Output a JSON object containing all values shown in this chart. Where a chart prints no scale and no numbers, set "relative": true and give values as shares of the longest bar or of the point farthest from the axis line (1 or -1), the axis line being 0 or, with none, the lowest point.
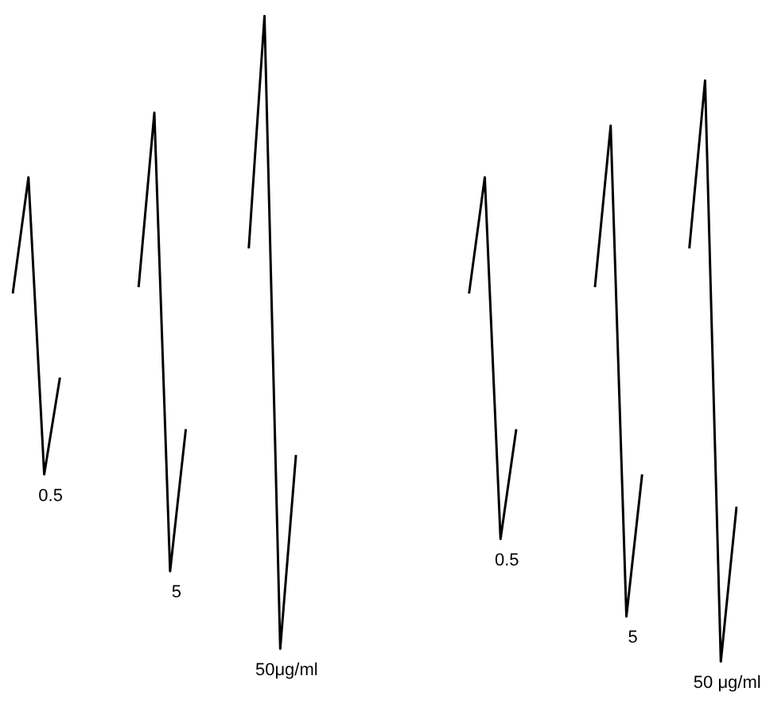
{
  "chart_data": {
    "type": "line",
    "relative": true,
    "categories": [
      null,
      null,
      null,
      null,
      null,
      null,
      null,
      null,
      null,
      null,
      null,
      null,
      null,
      null,
      null,
      null,
      null,
      null,
      null,
      null,
      null,
      null,
      null,
      null,
      null,
      null,
      null,
      null,
      null,
      null,
      null,
      null,
      null,
      null,
      null,
      null,
      null,
      null,
      null,
      null,
      null,
      null,
      null,
      null,
      null,
      null,
      null
    ],
    "series": [
      {
        "name": "0.5",
        "color": "#000000",
        "values": [
          0.57,
          0.75,
          0.29,
          0.44,
          null,
          null,
          null,
          null,
          null,
          null,
          null,
          null,
          null,
          null,
          null,
          null,
          null,
          null,
          null,
          null,
          null,
          null,
          null,
          null,
          null,
          null,
          null,
          null,
          null,
          null,
          null,
          null,
          null,
          null,
          null,
          null,
          null,
          null,
          null,
          null,
          null,
          null,
          null,
          null,
          null,
          null,
          null
        ]
      },
      {
        "name": "5",
        "color": "#000000",
        "values": [
          null,
          null,
          null,
          null,
          null,
          null,
          null,
          null,
          0.58,
          0.85,
          0.14,
          0.36,
          null,
          null,
          null,
          null,
          null,
          null,
          null,
          null,
          null,
          null,
          null,
          null,
          null,
          null,
          null,
          null,
          null,
          null,
          null,
          null,
          null,
          null,
          null,
          null,
          null,
          null,
          null,
          null,
          null,
          null,
          null,
          null,
          null,
          null,
          null
        ]
      },
      {
        "name": "50μg/ml",
        "color": "#000000",
        "values": [
          null,
          null,
          null,
          null,
          null,
          null,
          null,
          null,
          null,
          null,
          null,
          null,
          null,
          null,
          null,
          0.64,
          1,
          0.02,
          0.32,
          null,
          null,
          null,
          null,
          null,
          null,
          null,
          null,
          null,
          null,
          null,
          null,
          null,
          null,
          null,
          null,
          null,
          null,
          null,
          null,
          null,
          null,
          null,
          null,
          null,
          null,
          null,
          null
        ]
      },
      {
        "name": "0.5",
        "color": "#000000",
        "values": [
          null,
          null,
          null,
          null,
          null,
          null,
          null,
          null,
          null,
          null,
          null,
          null,
          null,
          null,
          null,
          null,
          null,
          null,
          null,
          null,
          null,
          null,
          null,
          null,
          null,
          null,
          null,
          null,
          null,
          0.57,
          0.75,
          0.19,
          0.36,
          null,
          null,
          null,
          null,
          null,
          null,
          null,
          null,
          null,
          null,
          null,
          null,
          null,
          null
        ]
      },
      {
        "name": "5",
        "color": "#000000",
        "values": [
          null,
          null,
          null,
          null,
          null,
          null,
          null,
          null,
          null,
          null,
          null,
          null,
          null,
          null,
          null,
          null,
          null,
          null,
          null,
          null,
          null,
          null,
          null,
          null,
          null,
          null,
          null,
          null,
          null,
          null,
          null,
          null,
          null,
          null,
          null,
          null,
          null,
          0.58,
          0.83,
          0.07,
          0.29,
          null,
          null,
          null,
          null,
          null,
          null
        ]
      },
      {
        "name": "50 μg/ml",
        "color": "#000000",
        "values": [
          null,
          null,
          null,
          null,
          null,
          null,
          null,
          null,
          null,
          null,
          null,
          null,
          null,
          null,
          null,
          null,
          null,
          null,
          null,
          null,
          null,
          null,
          null,
          null,
          null,
          null,
          null,
          null,
          null,
          null,
          null,
          null,
          null,
          null,
          null,
          null,
          null,
          null,
          null,
          null,
          null,
          null,
          null,
          0.64,
          0.9,
          0,
          0.24
        ]
      }
    ]
  }
}
